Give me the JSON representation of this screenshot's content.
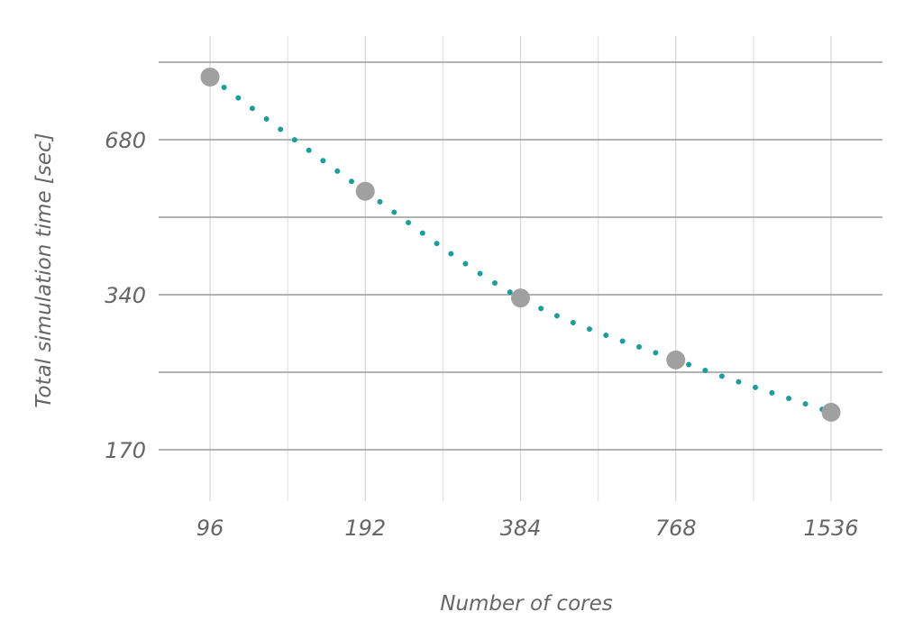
{
  "chart_data": {
    "type": "line",
    "xscale": "log2",
    "yscale": "log",
    "xlabel": "Number of cores",
    "ylabel": "Total simulation time [sec]",
    "xlim": [
      87,
      1700
    ],
    "ylim": [
      130,
      1060
    ],
    "x_ticks": [
      96,
      192,
      384,
      768,
      1536
    ],
    "y_ticks": [
      170,
      340,
      680
    ],
    "grid": true,
    "series": [
      {
        "style": "points",
        "color": "#a0a0a0",
        "x": [
          96,
          192,
          384,
          768,
          1536
        ],
        "y": [
          900,
          540,
          335,
          254,
          201
        ]
      },
      {
        "style": "dotted-fit",
        "color": "#1a9e9a",
        "x": [
          96,
          192,
          384,
          768,
          1536
        ],
        "y": [
          900,
          540,
          335,
          254,
          201
        ]
      }
    ]
  }
}
